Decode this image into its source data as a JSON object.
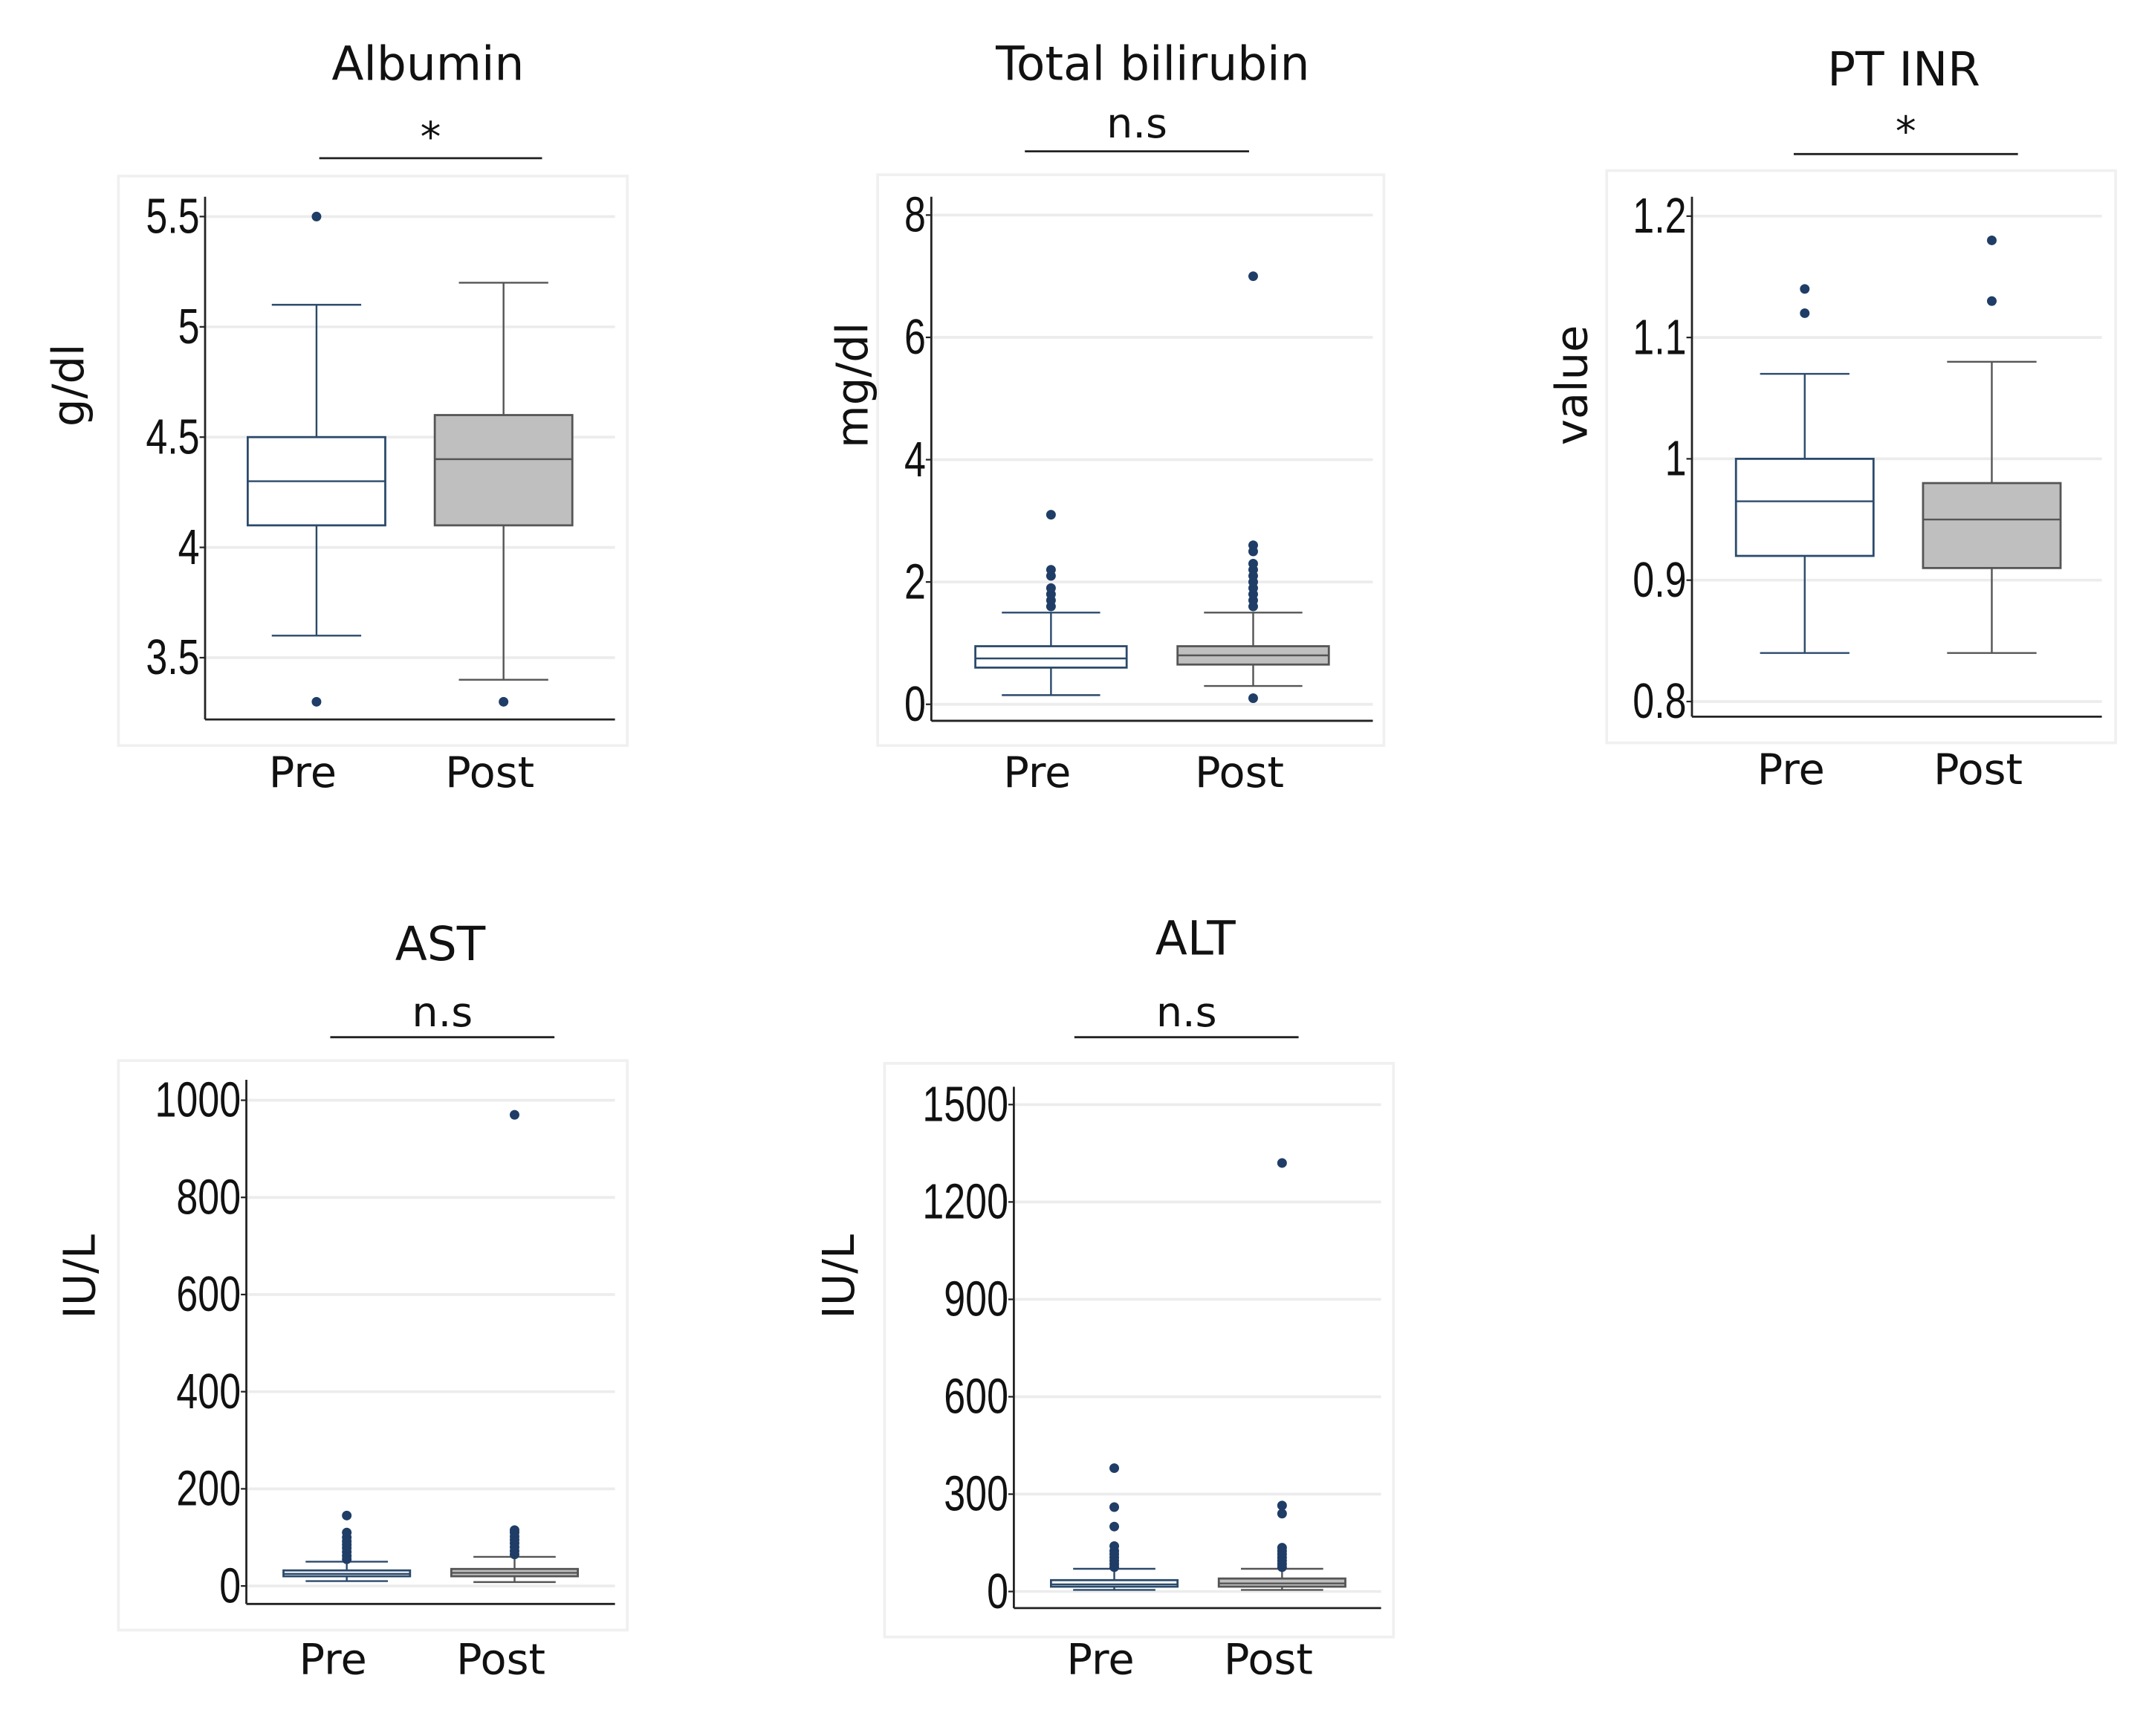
{
  "chart_data": [
    {
      "type": "box",
      "title": "Albumin",
      "significance": "*",
      "ylabel": "g/dl",
      "xlabel": "",
      "ylim": [
        3.22,
        5.59
      ],
      "yticks": [
        3.5,
        4,
        4.5,
        5,
        5.5
      ],
      "ytick_labels": [
        "3.5",
        "4",
        "4.5",
        "5",
        "5.5"
      ],
      "grid": true,
      "categories": [
        "Pre",
        "Post"
      ],
      "series": [
        {
          "name": "Pre",
          "whisker_low": 3.6,
          "q1": 4.1,
          "median": 4.3,
          "q3": 4.5,
          "whisker_high": 5.1,
          "outliers": [
            5.5,
            3.3
          ],
          "fill": "#ffffff",
          "stroke": "#2b4a6b"
        },
        {
          "name": "Post",
          "whisker_low": 3.4,
          "q1": 4.1,
          "median": 4.4,
          "q3": 4.6,
          "whisker_high": 5.2,
          "outliers": [
            3.3
          ],
          "fill": "#bfbfbf",
          "stroke": "#555555"
        }
      ]
    },
    {
      "type": "box",
      "title": "Total bilirubin",
      "significance": "n.s",
      "ylabel": "mg/dl",
      "xlabel": "",
      "ylim": [
        -0.27,
        8.3
      ],
      "yticks": [
        0,
        2,
        4,
        6,
        8
      ],
      "ytick_labels": [
        "0",
        "2",
        "4",
        "6",
        "8"
      ],
      "grid": true,
      "categories": [
        "Pre",
        "Post"
      ],
      "series": [
        {
          "name": "Pre",
          "whisker_low": 0.15,
          "q1": 0.6,
          "median": 0.75,
          "q3": 0.95,
          "whisker_high": 1.5,
          "outliers": [
            1.6,
            1.7,
            1.8,
            1.9,
            2.1,
            2.2,
            3.1
          ],
          "fill": "#ffffff",
          "stroke": "#2b4a6b"
        },
        {
          "name": "Post",
          "whisker_low": 0.3,
          "q1": 0.65,
          "median": 0.8,
          "q3": 0.95,
          "whisker_high": 1.5,
          "outliers": [
            0.1,
            1.6,
            1.7,
            1.8,
            1.9,
            2.0,
            2.1,
            2.2,
            2.3,
            2.5,
            2.6,
            7.0
          ],
          "fill": "#bfbfbf",
          "stroke": "#555555"
        }
      ]
    },
    {
      "type": "box",
      "title": "PT INR",
      "significance": "*",
      "ylabel": "value",
      "xlabel": "",
      "ylim": [
        0.7875,
        1.216
      ],
      "yticks": [
        0.8,
        0.9,
        1.0,
        1.1,
        1.2
      ],
      "ytick_labels": [
        "0.8",
        "0.9",
        "1",
        "1.1",
        "1.2"
      ],
      "grid": true,
      "categories": [
        "Pre",
        "Post"
      ],
      "series": [
        {
          "name": "Pre",
          "whisker_low": 0.84,
          "q1": 0.92,
          "median": 0.965,
          "q3": 1.0,
          "whisker_high": 1.07,
          "outliers": [
            1.12,
            1.14
          ],
          "fill": "#ffffff",
          "stroke": "#2b4a6b"
        },
        {
          "name": "Post",
          "whisker_low": 0.84,
          "q1": 0.91,
          "median": 0.95,
          "q3": 0.98,
          "whisker_high": 1.08,
          "outliers": [
            1.13,
            1.18
          ],
          "fill": "#bfbfbf",
          "stroke": "#555555"
        }
      ]
    },
    {
      "type": "box",
      "title": "AST",
      "significance": "n.s",
      "ylabel": "IU/L",
      "xlabel": "",
      "ylim": [
        -37,
        1042
      ],
      "yticks": [
        0,
        200,
        400,
        600,
        800,
        1000
      ],
      "ytick_labels": [
        "0",
        "200",
        "400",
        "600",
        "800",
        "1000"
      ],
      "grid": true,
      "categories": [
        "Pre",
        "Post"
      ],
      "series": [
        {
          "name": "Pre",
          "whisker_low": 10,
          "q1": 20,
          "median": 25,
          "q3": 32,
          "whisker_high": 50,
          "outliers": [
            55,
            62,
            70,
            78,
            85,
            92,
            100,
            110,
            145
          ],
          "fill": "#ffffff",
          "stroke": "#2b4a6b"
        },
        {
          "name": "Post",
          "whisker_low": 8,
          "q1": 20,
          "median": 27,
          "q3": 35,
          "whisker_high": 60,
          "outliers": [
            65,
            72,
            80,
            88,
            95,
            102,
            110,
            115,
            970
          ],
          "fill": "#bfbfbf",
          "stroke": "#555555"
        }
      ]
    },
    {
      "type": "box",
      "title": "ALT",
      "significance": "n.s",
      "ylabel": "IU/L",
      "xlabel": "",
      "ylim": [
        -51,
        1555
      ],
      "yticks": [
        0,
        300,
        600,
        900,
        1200,
        1500
      ],
      "ytick_labels": [
        "0",
        "300",
        "600",
        "900",
        "1200",
        "1500"
      ],
      "grid": true,
      "categories": [
        "Pre",
        "Post"
      ],
      "series": [
        {
          "name": "Pre",
          "whisker_low": 5,
          "q1": 15,
          "median": 22,
          "q3": 35,
          "whisker_high": 70,
          "outliers": [
            75,
            85,
            95,
            105,
            115,
            125,
            140,
            200,
            260,
            380
          ],
          "fill": "#ffffff",
          "stroke": "#2b4a6b"
        },
        {
          "name": "Post",
          "whisker_low": 5,
          "q1": 15,
          "median": 25,
          "q3": 40,
          "whisker_high": 70,
          "outliers": [
            75,
            85,
            95,
            105,
            115,
            125,
            135,
            240,
            265,
            1320
          ],
          "fill": "#bfbfbf",
          "stroke": "#555555"
        }
      ]
    }
  ],
  "colors": {
    "outlier": "#1f3d66",
    "axis": "#222222",
    "grid": "#ececec",
    "frame": "#f0f0f0"
  }
}
